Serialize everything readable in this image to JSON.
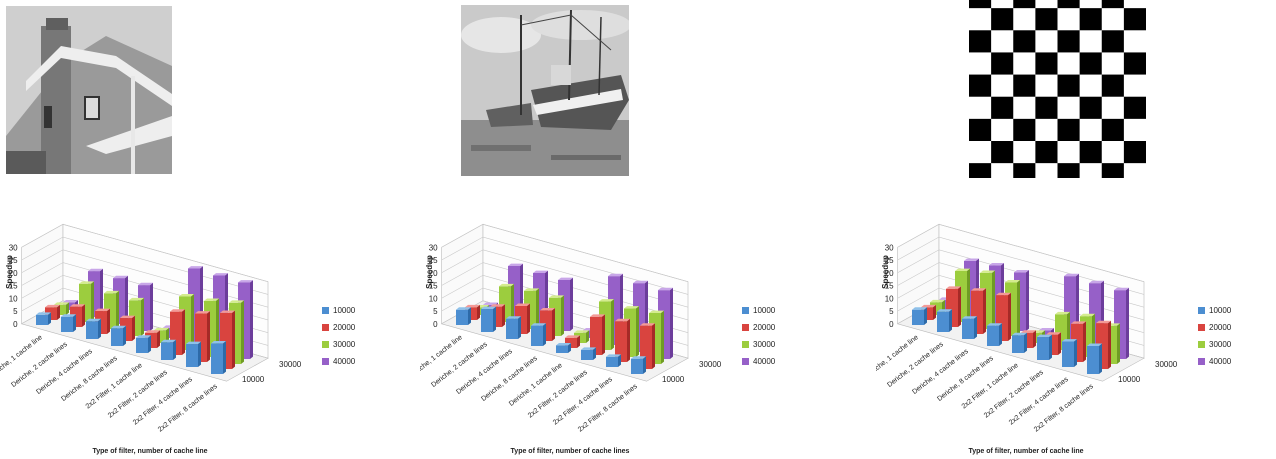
{
  "palette": {
    "blue": {
      "top": "#8fc1ea",
      "front": "#4c8ed1",
      "side": "#2d6aa8"
    },
    "red": {
      "top": "#f39a97",
      "front": "#d9443f",
      "side": "#a62a27"
    },
    "green": {
      "top": "#d4ec8e",
      "front": "#9ccd3e",
      "side": "#6f9b24"
    },
    "purple": {
      "top": "#c8a6e8",
      "front": "#9660c8",
      "side": "#6c3d9b"
    }
  },
  "images": [
    {
      "name": "house-image",
      "subject": "grayscale house"
    },
    {
      "name": "boats-image",
      "subject": "grayscale fishing boats"
    },
    {
      "name": "checkerboard-image",
      "subject": "black and white checkerboard"
    }
  ],
  "chart_data": [
    {
      "type": "bar",
      "style": "3d-clustered-column",
      "ylabel": "Speedup",
      "xlabel": "Type of filter, number of cache line",
      "ylim": [
        0,
        30
      ],
      "yticks": [
        "0",
        "5",
        "10",
        "15",
        "20",
        "25",
        "30"
      ],
      "depth_labels": [
        "30000",
        "10000"
      ],
      "legend_position": "right",
      "categories": [
        "Deriche, 1 cache line",
        "Deriche, 2 cache lines",
        "Deriche, 4 cache lines",
        "Deriche, 8 cache lines",
        "2x2 Filter, 1 cache line",
        "2x2 Filter, 2 cache lines",
        "2x2 Filter, 4 cache lines",
        "2x2 Filter, 8 cache lines"
      ],
      "series": [
        {
          "name": "10000",
          "color": "blue",
          "values": [
            4,
            6,
            7,
            7,
            6,
            7,
            9,
            12
          ]
        },
        {
          "name": "20000",
          "color": "red",
          "values": [
            5,
            8,
            9,
            9,
            6,
            17,
            19,
            22
          ]
        },
        {
          "name": "30000",
          "color": "green",
          "values": [
            4,
            15,
            14,
            14,
            5,
            21,
            22,
            24
          ]
        },
        {
          "name": "40000",
          "color": "purple",
          "values": [
            3,
            18,
            18,
            18,
            4,
            30,
            30,
            30
          ]
        }
      ]
    },
    {
      "type": "bar",
      "style": "3d-clustered-column",
      "ylabel": "Speedup",
      "xlabel": "Type of filter, number of cache lines",
      "ylim": [
        0,
        30
      ],
      "yticks": [
        "0",
        "5",
        "10",
        "15",
        "20",
        "25",
        "30"
      ],
      "depth_labels": [
        "30000",
        "10000"
      ],
      "legend_position": "right",
      "categories": [
        "Deriche, 1 cache line",
        "Deriche, 2 cache lines",
        "Deriche, 4 cache lines",
        "Deriche, 8 cache lines",
        "Deriche, 1 cache line",
        "2x2 Filter, 2 cache lines",
        "2x2 Filter, 4 cache lines",
        "2x2 Filter, 8 cache lines"
      ],
      "series": [
        {
          "name": "10000",
          "color": "blue",
          "values": [
            6,
            9,
            8,
            8,
            3,
            4,
            4,
            6
          ]
        },
        {
          "name": "20000",
          "color": "red",
          "values": [
            5,
            8,
            11,
            12,
            4,
            15,
            16,
            17
          ]
        },
        {
          "name": "30000",
          "color": "green",
          "values": [
            3,
            14,
            15,
            15,
            4,
            19,
            19,
            20
          ]
        },
        {
          "name": "40000",
          "color": "purple",
          "values": [
            2,
            20,
            20,
            20,
            3,
            27,
            27,
            27
          ]
        }
      ]
    },
    {
      "type": "bar",
      "style": "3d-clustered-column",
      "ylabel": "Speedup",
      "xlabel": "Type of filter, number of cache line",
      "ylim": [
        0,
        30
      ],
      "yticks": [
        "0",
        "5",
        "10",
        "15",
        "20",
        "25",
        "30"
      ],
      "depth_labels": [
        "30000",
        "10000"
      ],
      "legend_position": "right",
      "categories": [
        "Deriche, 1 cache line",
        "Deriche, 2 cache lines",
        "Deriche, 4 cache lines",
        "Deriche, 8 cache lines",
        "2x2 Filter, 1 cache line",
        "2x2 Filter, 2 cache lines",
        "2x2 Filter, 4 cache lines",
        "2x2 Filter, 8 cache lines"
      ],
      "series": [
        {
          "name": "10000",
          "color": "blue",
          "values": [
            6,
            8,
            8,
            8,
            7,
            9,
            10,
            11
          ]
        },
        {
          "name": "20000",
          "color": "red",
          "values": [
            5,
            15,
            17,
            18,
            6,
            8,
            15,
            18
          ]
        },
        {
          "name": "30000",
          "color": "green",
          "values": [
            5,
            20,
            22,
            21,
            4,
            14,
            16,
            15
          ]
        },
        {
          "name": "40000",
          "color": "purple",
          "values": [
            4,
            22,
            23,
            23,
            3,
            27,
            27,
            27
          ]
        }
      ]
    }
  ]
}
